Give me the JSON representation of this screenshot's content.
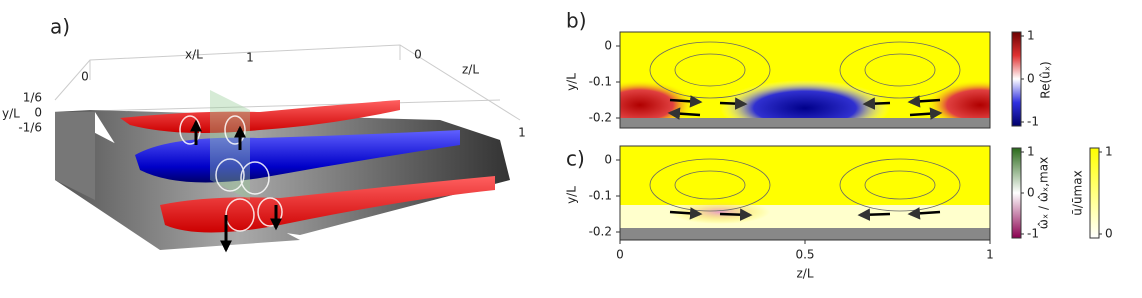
{
  "panel_a": {
    "label": "a)",
    "x_label": "x/L",
    "x_ticks": [
      0,
      1
    ],
    "z_label": "z/L",
    "z_ticks": [
      0,
      1
    ],
    "y_label": "y/L",
    "y_ticks": [
      "1/6",
      "0",
      "-1/6"
    ]
  },
  "panel_b": {
    "label": "b)",
    "y_label": "y/L",
    "y_ticks": [
      0,
      -0.1,
      -0.2
    ],
    "colorbar_label": "Re(ûₓ)",
    "colorbar_ticks": [
      1,
      0,
      -1
    ]
  },
  "panel_c": {
    "label": "c)",
    "y_label": "y/L",
    "y_ticks": [
      0,
      -0.1,
      -0.2
    ],
    "x_label": "z/L",
    "x_ticks": [
      0,
      0.5,
      1
    ],
    "colorbar_label": "ω̂ₓ / ω̂ₓ,max",
    "colorbar_ticks": [
      1,
      0,
      -1
    ],
    "colorbar2_label": "ū/ūmax",
    "colorbar2_ticks": [
      1,
      0
    ]
  }
}
